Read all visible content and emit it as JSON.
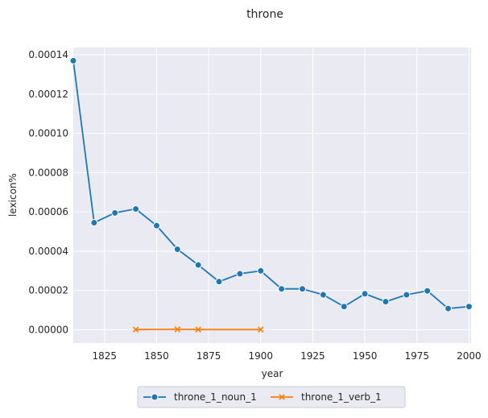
{
  "chart_data": {
    "type": "line",
    "title": "throne",
    "xlabel": "year",
    "ylabel": "lexicon%",
    "xlim": [
      1810,
      2001
    ],
    "ylim": [
      -6.8e-06,
      0.0001437
    ],
    "x_ticks": [
      1825,
      1850,
      1875,
      1900,
      1925,
      1950,
      1975,
      2000
    ],
    "x_tick_labels": [
      "1825",
      "1850",
      "1875",
      "1900",
      "1925",
      "1950",
      "1975",
      "2000"
    ],
    "y_ticks": [
      0,
      2e-05,
      4e-05,
      6e-05,
      8e-05,
      0.0001,
      0.00012,
      0.00014
    ],
    "y_tick_labels": [
      "0.00000",
      "0.00002",
      "0.00004",
      "0.00006",
      "0.00008",
      "0.00010",
      "0.00012",
      "0.00014"
    ],
    "grid": true,
    "legend_position": "bottom-center",
    "series": [
      {
        "name": "throne_1_noun_1",
        "color": "#1f77b4",
        "marker": "circle",
        "x": [
          1810,
          1820,
          1830,
          1840,
          1850,
          1860,
          1870,
          1880,
          1890,
          1900,
          1910,
          1920,
          1930,
          1940,
          1950,
          1960,
          1970,
          1980,
          1990,
          2000
        ],
        "y": [
          0.000137,
          5.45e-05,
          5.95e-05,
          6.15e-05,
          5.3e-05,
          4.1e-05,
          3.3e-05,
          2.45e-05,
          2.85e-05,
          3e-05,
          2.08e-05,
          2.08e-05,
          1.78e-05,
          1.18e-05,
          1.83e-05,
          1.43e-05,
          1.78e-05,
          1.98e-05,
          1.08e-05,
          1.18e-05
        ]
      },
      {
        "name": "throne_1_verb_1",
        "color": "#ff7f0e",
        "marker": "x",
        "x": [
          1840,
          1860,
          1870,
          1900
        ],
        "y": [
          1e-07,
          2e-07,
          1e-07,
          1e-07
        ]
      }
    ]
  }
}
